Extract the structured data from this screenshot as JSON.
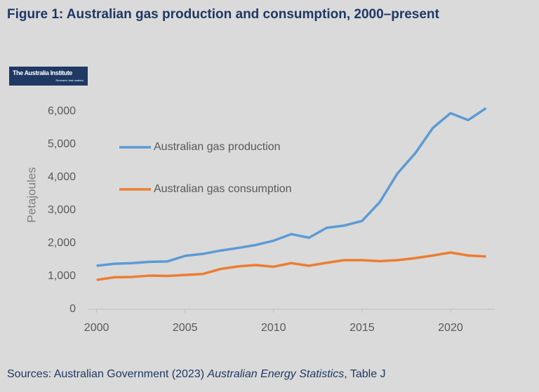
{
  "chart_data": {
    "type": "line",
    "title": "Figure 1: Australian gas production and consumption, 2000–present",
    "y_label": "Petajoules",
    "x": [
      2000,
      2001,
      2002,
      2003,
      2004,
      2005,
      2006,
      2007,
      2008,
      2009,
      2010,
      2011,
      2012,
      2013,
      2014,
      2015,
      2016,
      2017,
      2018,
      2019,
      2020,
      2021,
      2022
    ],
    "series": [
      {
        "name": "Australian gas production",
        "color": "#5b9bd5",
        "values": [
          1320,
          1380,
          1400,
          1440,
          1450,
          1620,
          1680,
          1780,
          1860,
          1950,
          2080,
          2280,
          2170,
          2470,
          2540,
          2680,
          3250,
          4120,
          4730,
          5500,
          5950,
          5740,
          6100
        ]
      },
      {
        "name": "Australian gas consumption",
        "color": "#ed7d31",
        "values": [
          890,
          970,
          980,
          1020,
          1010,
          1040,
          1070,
          1220,
          1300,
          1340,
          1290,
          1400,
          1320,
          1410,
          1490,
          1490,
          1460,
          1490,
          1550,
          1630,
          1720,
          1630,
          1600
        ]
      }
    ],
    "xlim": [
      1999.5,
      2022.5
    ],
    "xticks": [
      2000,
      2005,
      2010,
      2015,
      2020
    ],
    "ylim": [
      0,
      6000
    ],
    "yticks": [
      0,
      {
        "value": 1000,
        "label": "1,000"
      },
      {
        "value": 2000,
        "label": "2,000"
      },
      {
        "value": 3000,
        "label": "3,000"
      },
      {
        "value": 4000,
        "label": "4,000"
      },
      {
        "value": 5000,
        "label": "5,000"
      },
      {
        "value": 6000,
        "label": "6,000"
      }
    ],
    "grid": false,
    "legend": "upper-left"
  },
  "logo": {
    "name": "The Australia Institute",
    "tagline": "Research that matters."
  },
  "source": {
    "prefix": "Sources: Australian Government (2023) ",
    "publication": "Australian Energy Statistics",
    "suffix": ", Table J"
  }
}
